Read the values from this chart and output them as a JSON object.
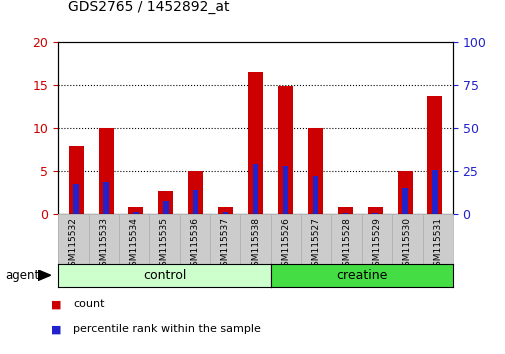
{
  "title": "GDS2765 / 1452892_at",
  "categories": [
    "GSM115532",
    "GSM115533",
    "GSM115534",
    "GSM115535",
    "GSM115536",
    "GSM115537",
    "GSM115538",
    "GSM115526",
    "GSM115527",
    "GSM115528",
    "GSM115529",
    "GSM115530",
    "GSM115531"
  ],
  "count_values": [
    7.9,
    10.0,
    0.8,
    2.7,
    5.0,
    0.8,
    16.6,
    14.9,
    10.0,
    0.8,
    0.8,
    5.0,
    13.8
  ],
  "percentile_values": [
    17.5,
    19.0,
    1.0,
    7.5,
    14.0,
    1.0,
    29.5,
    28.0,
    22.5,
    0.5,
    0.5,
    15.0,
    26.0
  ],
  "count_color": "#cc0000",
  "percentile_color": "#2222cc",
  "ylim_left": [
    0,
    20
  ],
  "ylim_right": [
    0,
    100
  ],
  "yticks_left": [
    0,
    5,
    10,
    15,
    20
  ],
  "yticks_right": [
    0,
    25,
    50,
    75,
    100
  ],
  "control_indices": [
    0,
    1,
    2,
    3,
    4,
    5,
    6
  ],
  "creatine_indices": [
    7,
    8,
    9,
    10,
    11,
    12
  ],
  "control_color": "#ccffcc",
  "creatine_color": "#44dd44",
  "legend_items": [
    {
      "label": "count",
      "color": "#cc0000"
    },
    {
      "label": "percentile rank within the sample",
      "color": "#2222cc"
    }
  ],
  "background_color": "#ffffff",
  "tick_label_color_left": "#cc0000",
  "tick_label_color_right": "#2222cc",
  "xtick_bg_color": "#cccccc",
  "xtick_border_color": "#aaaaaa"
}
